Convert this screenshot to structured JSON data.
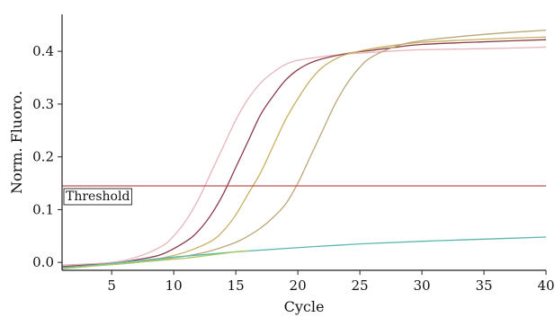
{
  "chart_data": {
    "type": "line",
    "title": "",
    "xlabel": "Cycle",
    "ylabel": "Norm. Fluoro.",
    "xlim": [
      1,
      40
    ],
    "ylim": [
      -0.015,
      0.47
    ],
    "xticks": [
      5,
      10,
      15,
      20,
      25,
      30,
      35,
      40
    ],
    "yticks": [
      0.0,
      0.1,
      0.2,
      0.3,
      0.4
    ],
    "ytick_labels": [
      "0.0",
      "0.1",
      "0.2",
      "0.3",
      "0.4"
    ],
    "grid": false,
    "legend": "none",
    "threshold": {
      "label": "Threshold",
      "value": 0.145,
      "color": "#c0504d"
    },
    "series": [
      {
        "color": "#e8b4bc",
        "x": [
          1,
          3,
          5,
          7,
          9,
          10,
          11,
          12,
          13,
          14,
          15,
          16,
          17,
          18,
          19,
          20,
          22,
          24,
          26,
          28,
          30,
          35,
          40
        ],
        "y": [
          -0.005,
          -0.003,
          0.0,
          0.01,
          0.03,
          0.05,
          0.08,
          0.12,
          0.17,
          0.22,
          0.27,
          0.31,
          0.34,
          0.36,
          0.375,
          0.383,
          0.39,
          0.395,
          0.398,
          0.401,
          0.403,
          0.405,
          0.408
        ]
      },
      {
        "color": "#8b3a4a",
        "x": [
          1,
          3,
          5,
          7,
          9,
          11,
          12,
          13,
          14,
          15,
          16,
          17,
          18,
          19,
          20,
          21,
          22,
          24,
          26,
          28,
          30,
          35,
          40
        ],
        "y": [
          -0.008,
          -0.005,
          -0.002,
          0.005,
          0.015,
          0.04,
          0.06,
          0.09,
          0.13,
          0.18,
          0.23,
          0.28,
          0.315,
          0.345,
          0.365,
          0.378,
          0.386,
          0.396,
          0.402,
          0.408,
          0.413,
          0.418,
          0.422
        ]
      },
      {
        "color": "#c8b060",
        "x": [
          1,
          3,
          5,
          7,
          9,
          11,
          13,
          14,
          15,
          16,
          17,
          18,
          19,
          20,
          21,
          22,
          23,
          24,
          26,
          28,
          30,
          35,
          40
        ],
        "y": [
          -0.01,
          -0.007,
          -0.004,
          0.0,
          0.008,
          0.02,
          0.04,
          0.06,
          0.09,
          0.13,
          0.17,
          0.22,
          0.27,
          0.31,
          0.345,
          0.37,
          0.385,
          0.395,
          0.405,
          0.412,
          0.417,
          0.423,
          0.427
        ]
      },
      {
        "color": "#b8a878",
        "x": [
          1,
          3,
          5,
          7,
          9,
          11,
          13,
          15,
          16,
          17,
          18,
          19,
          20,
          21,
          22,
          23,
          24,
          25,
          26,
          28,
          30,
          35,
          40
        ],
        "y": [
          -0.01,
          -0.007,
          -0.004,
          0.0,
          0.006,
          0.012,
          0.022,
          0.038,
          0.05,
          0.065,
          0.085,
          0.11,
          0.15,
          0.2,
          0.25,
          0.3,
          0.34,
          0.37,
          0.39,
          0.41,
          0.42,
          0.432,
          0.44
        ]
      },
      {
        "color": "#5ab8b0",
        "x": [
          1,
          5,
          10,
          15,
          20,
          25,
          30,
          35,
          40
        ],
        "y": [
          -0.01,
          -0.002,
          0.01,
          0.02,
          0.028,
          0.035,
          0.04,
          0.044,
          0.048
        ]
      },
      {
        "color": "#a8c860",
        "x": [
          1,
          3,
          5,
          7,
          9,
          10,
          11,
          12,
          13,
          14,
          15,
          16
        ],
        "y": [
          -0.012,
          -0.008,
          -0.004,
          0.0,
          0.004,
          0.006,
          0.008,
          0.011,
          0.014,
          0.017,
          0.02,
          0.022
        ]
      }
    ]
  }
}
